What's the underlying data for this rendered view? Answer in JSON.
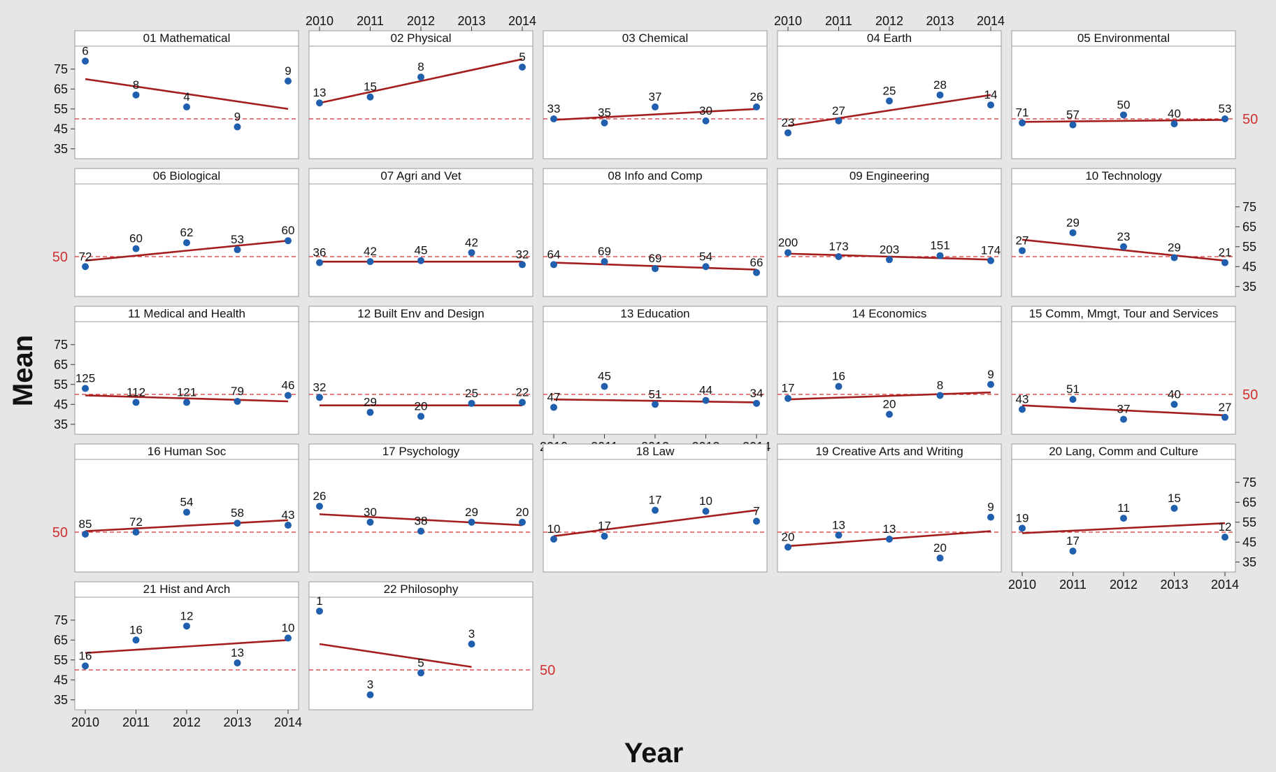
{
  "chart_data": {
    "type": "scatter",
    "subtype": "panel-grid-with-trend-lines",
    "xlabel": "Year",
    "ylabel": "Mean",
    "x_ticks": [
      "2010",
      "2011",
      "2012",
      "2013",
      "2014"
    ],
    "y_ticks": [
      "35",
      "45",
      "55",
      "65",
      "75"
    ],
    "ylim": [
      30,
      83
    ],
    "reference_line": {
      "value": 50,
      "label": "50",
      "style": "dashed",
      "color": "#d03030"
    },
    "marker_color": "#1f5fae",
    "trend_color": "#a51e1e",
    "grid": false,
    "panels": [
      {
        "title": "01 Mathematical",
        "x": [
          2010,
          2011,
          2012,
          2013,
          2014
        ],
        "y": [
          79,
          62,
          56,
          46,
          69
        ],
        "labels": [
          "6",
          "8",
          "4",
          "9",
          "9"
        ],
        "trend": [
          70,
          55
        ]
      },
      {
        "title": "02 Physical",
        "x": [
          2010,
          2011,
          2012,
          2013,
          2014
        ],
        "y": [
          58,
          61,
          71,
          null,
          76
        ],
        "labels": [
          "13",
          "15",
          "8",
          null,
          "5"
        ],
        "trend": [
          58,
          80
        ]
      },
      {
        "title": "03 Chemical",
        "x": [
          2010,
          2011,
          2012,
          2013,
          2014
        ],
        "y": [
          50,
          48,
          56,
          49,
          56
        ],
        "labels": [
          "33",
          "35",
          "37",
          "30",
          "26"
        ],
        "trend": [
          49.5,
          55
        ]
      },
      {
        "title": "04 Earth",
        "x": [
          2010,
          2011,
          2012,
          2013,
          2014
        ],
        "y": [
          43,
          49,
          59,
          62,
          57
        ],
        "labels": [
          "23",
          "27",
          "25",
          "28",
          "14"
        ],
        "trend": [
          46.5,
          62
        ]
      },
      {
        "title": "05 Environmental",
        "x": [
          2010,
          2011,
          2012,
          2013,
          2014
        ],
        "y": [
          48,
          47,
          52,
          47.5,
          50
        ],
        "labels": [
          "71",
          "57",
          "50",
          "40",
          "53"
        ],
        "trend": [
          48.5,
          49.5
        ]
      },
      {
        "title": "06 Biological",
        "x": [
          2010,
          2011,
          2012,
          2013,
          2014
        ],
        "y": [
          45,
          54,
          57,
          53.5,
          58
        ],
        "labels": [
          "72",
          "60",
          "62",
          "53",
          "60"
        ],
        "trend": [
          48,
          58
        ]
      },
      {
        "title": "07 Agri and Vet",
        "x": [
          2010,
          2011,
          2012,
          2013,
          2014
        ],
        "y": [
          47,
          47.5,
          48,
          52,
          46
        ],
        "labels": [
          "36",
          "42",
          "45",
          "42",
          "32"
        ],
        "trend": [
          47.5,
          47.5
        ]
      },
      {
        "title": "08 Info and Comp",
        "x": [
          2010,
          2011,
          2012,
          2013,
          2014
        ],
        "y": [
          46,
          47.5,
          44,
          45,
          42
        ],
        "labels": [
          "64",
          "69",
          "69",
          "54",
          "66"
        ],
        "trend": [
          47,
          43.5
        ]
      },
      {
        "title": "09 Engineering",
        "x": [
          2010,
          2011,
          2012,
          2013,
          2014
        ],
        "y": [
          52,
          50,
          48.5,
          50.5,
          48
        ],
        "labels": [
          "200",
          "173",
          "203",
          "151",
          "174"
        ],
        "trend": [
          51.5,
          48.5
        ]
      },
      {
        "title": "10 Technology",
        "x": [
          2010,
          2011,
          2012,
          2013,
          2014
        ],
        "y": [
          53,
          62,
          55,
          49.5,
          47
        ],
        "labels": [
          "27",
          "29",
          "23",
          "29",
          "21"
        ],
        "trend": [
          58.5,
          48
        ]
      },
      {
        "title": "11 Medical and Health",
        "x": [
          2010,
          2011,
          2012,
          2013,
          2014
        ],
        "y": [
          53,
          46,
          46,
          46.5,
          49.5
        ],
        "labels": [
          "125",
          "112",
          "121",
          "79",
          "46"
        ],
        "trend": [
          49.5,
          46.5
        ]
      },
      {
        "title": "12 Built Env and Design",
        "x": [
          2010,
          2011,
          2012,
          2013,
          2014
        ],
        "y": [
          48.5,
          41,
          39,
          45.5,
          46
        ],
        "labels": [
          "32",
          "29",
          "20",
          "25",
          "22"
        ],
        "trend": [
          44.5,
          44.5
        ]
      },
      {
        "title": "13 Education",
        "x": [
          2010,
          2011,
          2012,
          2013,
          2014
        ],
        "y": [
          43.5,
          54,
          45,
          47,
          45.5
        ],
        "labels": [
          "47",
          "45",
          "51",
          "44",
          "34"
        ],
        "trend": [
          47.5,
          46
        ]
      },
      {
        "title": "14 Economics",
        "x": [
          2010,
          2011,
          2012,
          2013,
          2014
        ],
        "y": [
          48,
          54,
          40,
          49.5,
          55
        ],
        "labels": [
          "17",
          "16",
          "20",
          "8",
          "9"
        ],
        "trend": [
          47.5,
          51
        ]
      },
      {
        "title": "15 Comm, Mmgt, Tour and Services",
        "x": [
          2010,
          2011,
          2012,
          2013,
          2014
        ],
        "y": [
          42.5,
          47.5,
          37.5,
          45,
          38.5
        ],
        "labels": [
          "43",
          "51",
          "37",
          "40",
          "27"
        ],
        "trend": [
          44.5,
          39.5
        ]
      },
      {
        "title": "16 Human Soc",
        "x": [
          2010,
          2011,
          2012,
          2013,
          2014
        ],
        "y": [
          49,
          50,
          60,
          54.5,
          53.5
        ],
        "labels": [
          "85",
          "72",
          "54",
          "58",
          "43"
        ],
        "trend": [
          50.5,
          56
        ]
      },
      {
        "title": "17 Psychology",
        "x": [
          2010,
          2011,
          2012,
          2013,
          2014
        ],
        "y": [
          63,
          55,
          50.5,
          55,
          55
        ],
        "labels": [
          "26",
          "30",
          "38",
          "29",
          "20"
        ],
        "trend": [
          59,
          53.5
        ]
      },
      {
        "title": "18 Law",
        "x": [
          2010,
          2011,
          2012,
          2013,
          2014
        ],
        "y": [
          46.5,
          48,
          61,
          60.5,
          55.5
        ],
        "labels": [
          "10",
          "17",
          "17",
          "10",
          "7"
        ],
        "trend": [
          48,
          61
        ]
      },
      {
        "title": "19 Creative Arts and Writing",
        "x": [
          2010,
          2011,
          2012,
          2013,
          2014
        ],
        "y": [
          42.5,
          48.5,
          46.5,
          37,
          57.5
        ],
        "labels": [
          "20",
          "13",
          "13",
          "20",
          "9"
        ],
        "trend": [
          43,
          50.5
        ]
      },
      {
        "title": "20 Lang, Comm and Culture",
        "x": [
          2010,
          2011,
          2012,
          2013,
          2014
        ],
        "y": [
          52,
          40.5,
          57,
          62,
          47.5
        ],
        "labels": [
          "19",
          "17",
          "11",
          "15",
          "12"
        ],
        "trend": [
          49.5,
          54.5
        ]
      },
      {
        "title": "21 Hist and Arch",
        "x": [
          2010,
          2011,
          2012,
          2013,
          2014
        ],
        "y": [
          52,
          65,
          72,
          53.5,
          66
        ],
        "labels": [
          "16",
          "16",
          "12",
          "13",
          "10"
        ],
        "trend": [
          58.5,
          65
        ]
      },
      {
        "title": "22 Philosophy",
        "x": [
          2010,
          2011,
          2012,
          2013,
          2014
        ],
        "y": [
          79.5,
          37.5,
          48.5,
          63,
          null
        ],
        "labels": [
          "1",
          "3",
          "5",
          "3",
          null
        ],
        "trend": [
          63,
          51.5
        ],
        "trend_x": [
          2010,
          2013
        ]
      }
    ]
  }
}
